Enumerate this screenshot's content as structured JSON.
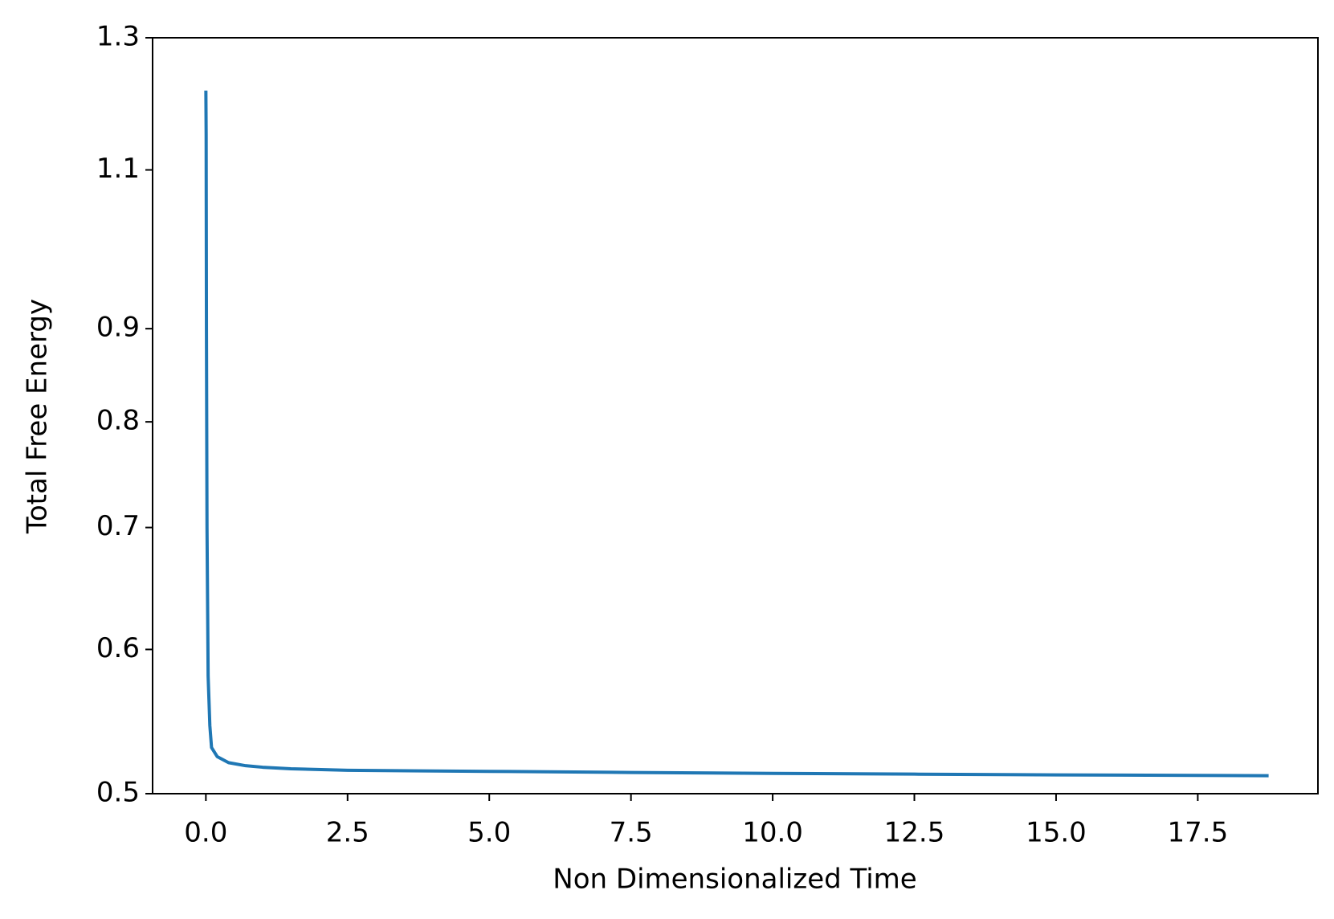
{
  "chart_data": {
    "type": "line",
    "x_label": "Non Dimensionalized Time",
    "y_label": "Total Free Energy",
    "x": [
      0,
      0.005,
      0.01,
      0.02,
      0.04,
      0.07,
      0.1,
      0.2,
      0.4,
      0.7,
      1,
      1.5,
      2.5,
      5,
      7.5,
      10,
      12.5,
      15,
      17.5,
      18.75
    ],
    "series": [
      {
        "color": "#1f77b4",
        "values": [
          1.216,
          1.15,
          0.9,
          0.7,
          0.58,
          0.545,
          0.53,
          0.524,
          0.52,
          0.518,
          0.517,
          0.516,
          0.515,
          0.5143,
          0.5136,
          0.513,
          0.5125,
          0.512,
          0.5117,
          0.5115
        ]
      }
    ],
    "xlim": [
      -0.94,
      19.62
    ],
    "xticks": [
      {
        "value": 0,
        "label": "0.0"
      },
      2.5,
      {
        "value": 5,
        "label": "5.0"
      },
      7.5,
      {
        "value": 10,
        "label": "10.0"
      },
      12.5,
      {
        "value": 15,
        "label": "15.0"
      },
      17.5
    ],
    "ylim": [
      0.5,
      1.3
    ],
    "yticks": [
      0.5,
      0.6,
      0.7,
      0.8,
      0.9,
      1.1,
      1.3
    ],
    "y_scale": "log",
    "grid": false
  }
}
